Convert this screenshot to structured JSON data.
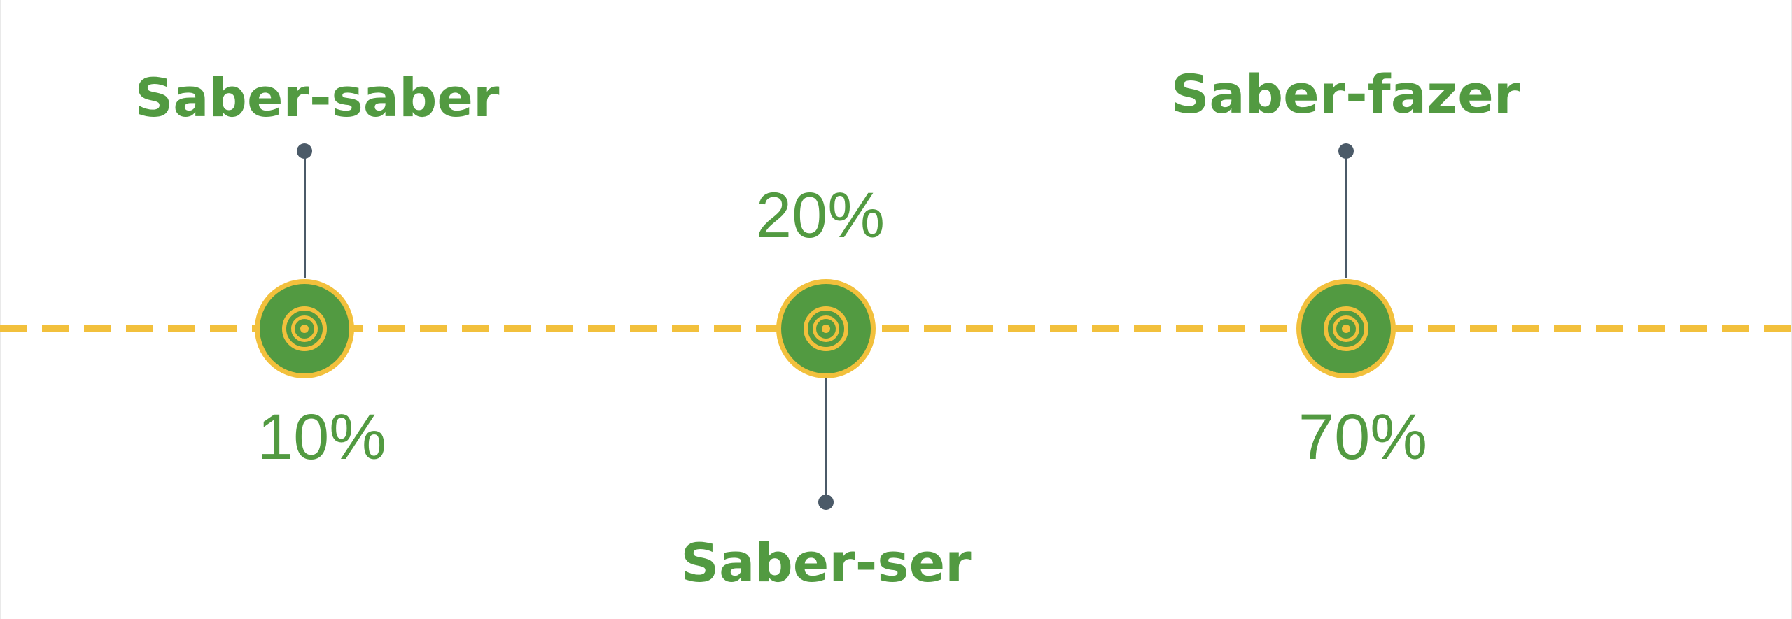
{
  "colors": {
    "green": "#529a41",
    "yellow": "#f2c03c",
    "connector": "#4b5a68",
    "background": "#ffffff"
  },
  "icons": {
    "marker": "concentric-target-icon",
    "connector_end": "dot-icon"
  },
  "milestones": [
    {
      "title": "Saber-saber",
      "percent": "10%"
    },
    {
      "title": "Saber-ser",
      "percent": "20%"
    },
    {
      "title": "Saber-fazer",
      "percent": "70%"
    }
  ]
}
